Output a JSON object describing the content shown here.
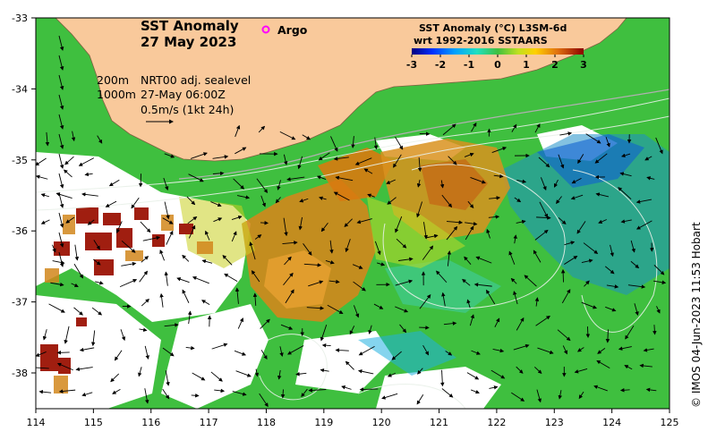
{
  "map": {
    "title_line1": "SST Anomaly",
    "title_line2": "27 May 2023",
    "argo_label": "Argo",
    "colorbar_title_line1": "SST Anomaly (°C) L3SM-6d",
    "colorbar_title_line2": "wrt 1992-2016 SSTAARS",
    "colorbar_ticks": [
      "-3",
      "-2",
      "-1",
      "0",
      "1",
      "2",
      "3"
    ],
    "contour_label_200": "200m",
    "contour_label_1000": "1000m",
    "current_source": "NRT00 adj. sealevel",
    "current_time": "27-May 06:00Z",
    "arrow_scale": "0.5m/s (1kt 24h)",
    "credit": "© IMOS 04-Jun-2023 11:53 Hobart",
    "lon_ticks": [
      "114",
      "115",
      "116",
      "117",
      "118",
      "119",
      "120",
      "121",
      "122",
      "123",
      "124",
      "125"
    ],
    "lat_ticks": [
      "-33",
      "-34",
      "-35",
      "-36",
      "-37",
      "-38"
    ],
    "colors": {
      "land": "#f9c99b",
      "ocean_green": "#3fbf3f",
      "anomaly_warm": "#d2871c",
      "anomaly_hot": "#a01e10",
      "anomaly_cool": "#1e90c8",
      "argo": "#ff00ff"
    }
  }
}
